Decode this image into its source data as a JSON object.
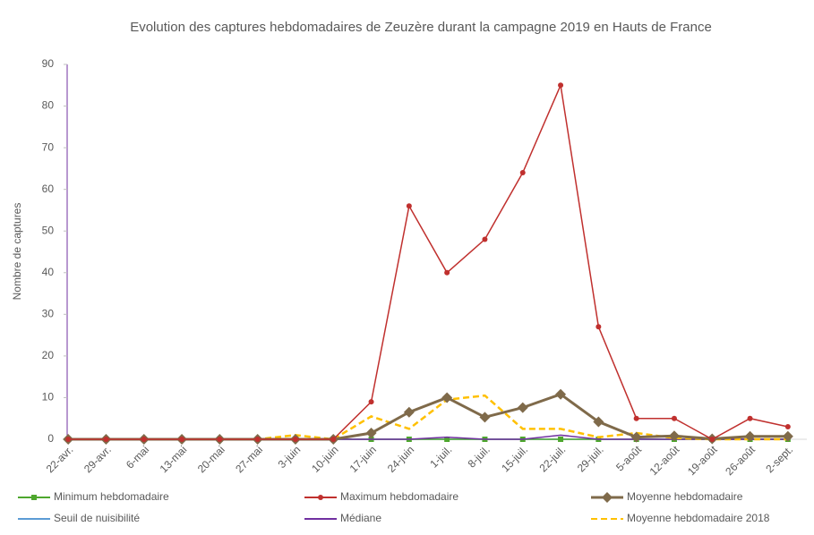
{
  "chart_data": {
    "type": "line",
    "title": "Evolution des captures hebdomadaires de Zeuzère durant la  campagne 2019 en Hauts de France",
    "y_label": "Nombre de captures",
    "categories": [
      "22-avr.",
      "29-avr.",
      "6-mai",
      "13-mai",
      "20-mai",
      "27-mai",
      "3-juin",
      "10-juin",
      "17-juin",
      "24-juin",
      "1-juil.",
      "8-juil.",
      "15-juil.",
      "22-juil.",
      "29-juil.",
      "5-août",
      "12-août",
      "19-août",
      "26-août",
      "2-sept."
    ],
    "series": [
      {
        "name": "Minimum hebdomadaire",
        "color": "#4ea72e",
        "marker": "square",
        "values": [
          0,
          0,
          0,
          0,
          0,
          0,
          0,
          0,
          0,
          0,
          0,
          0,
          0,
          0,
          0,
          0,
          0,
          0,
          0,
          0
        ]
      },
      {
        "name": "Maximum hebdomadaire",
        "color": "#c0302e",
        "marker": "circle",
        "values": [
          0,
          0,
          0,
          0,
          0,
          0,
          0,
          0,
          9,
          56,
          40,
          48,
          64,
          85,
          27,
          5,
          5,
          0,
          5,
          3
        ]
      },
      {
        "name": "Moyenne hebdomadaire",
        "color": "#7f6a4a",
        "marker": "diamond",
        "values": [
          0,
          0,
          0,
          0,
          0,
          0,
          0,
          0,
          1.5,
          6.5,
          10,
          5.3,
          7.6,
          10.8,
          4.2,
          0.5,
          0.8,
          0.1,
          0.7,
          0.7
        ]
      },
      {
        "name": "Seuil de nuisibilité",
        "color": "#5b9bd5",
        "values": [
          0,
          0,
          0,
          0,
          0,
          0,
          0,
          0,
          0,
          0,
          0,
          0,
          0,
          0,
          0,
          0,
          0,
          0,
          0,
          0
        ]
      },
      {
        "name": "Médiane",
        "color": "#7030a0",
        "values": [
          0,
          0,
          0,
          0,
          0,
          0,
          0,
          0,
          0,
          0,
          0.5,
          0,
          0,
          1,
          0,
          0,
          0,
          0,
          0,
          0
        ]
      },
      {
        "name": "Moyenne hebdomadaire 2018",
        "color": "#ffc000",
        "dashed": true,
        "values": [
          0,
          0,
          0,
          0,
          0,
          0,
          1,
          0,
          5.5,
          2.5,
          9.5,
          10.5,
          2.5,
          2.5,
          0.5,
          1.5,
          0.3,
          0,
          0,
          0
        ]
      }
    ],
    "ylim": [
      0,
      90
    ],
    "yticks": [
      0,
      10,
      20,
      30,
      40,
      50,
      60,
      70,
      80,
      90
    ],
    "grid": false
  }
}
